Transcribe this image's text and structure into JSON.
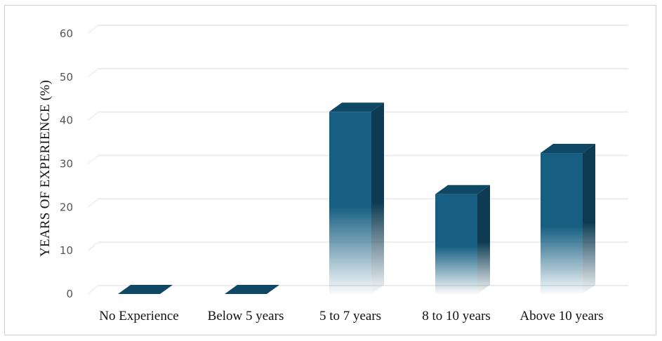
{
  "chart_data": {
    "type": "bar",
    "title": "",
    "xlabel": "",
    "ylabel": "YEARS  OF EXPERIENCE  (%)",
    "ylim": [
      0,
      60
    ],
    "yticks": [
      "0",
      "10",
      "20",
      "30",
      "40",
      "50",
      "60"
    ],
    "categories": [
      "No Experience",
      "Below 5 years",
      "5 to 7 years",
      "8 to 10 years",
      "Above 10 years"
    ],
    "values": [
      0,
      0,
      42,
      23,
      32.5
    ],
    "grid": true,
    "legend": "none",
    "colors": {
      "front": "#165f82",
      "side": "#0c3b52",
      "top": "#0f4864"
    }
  }
}
